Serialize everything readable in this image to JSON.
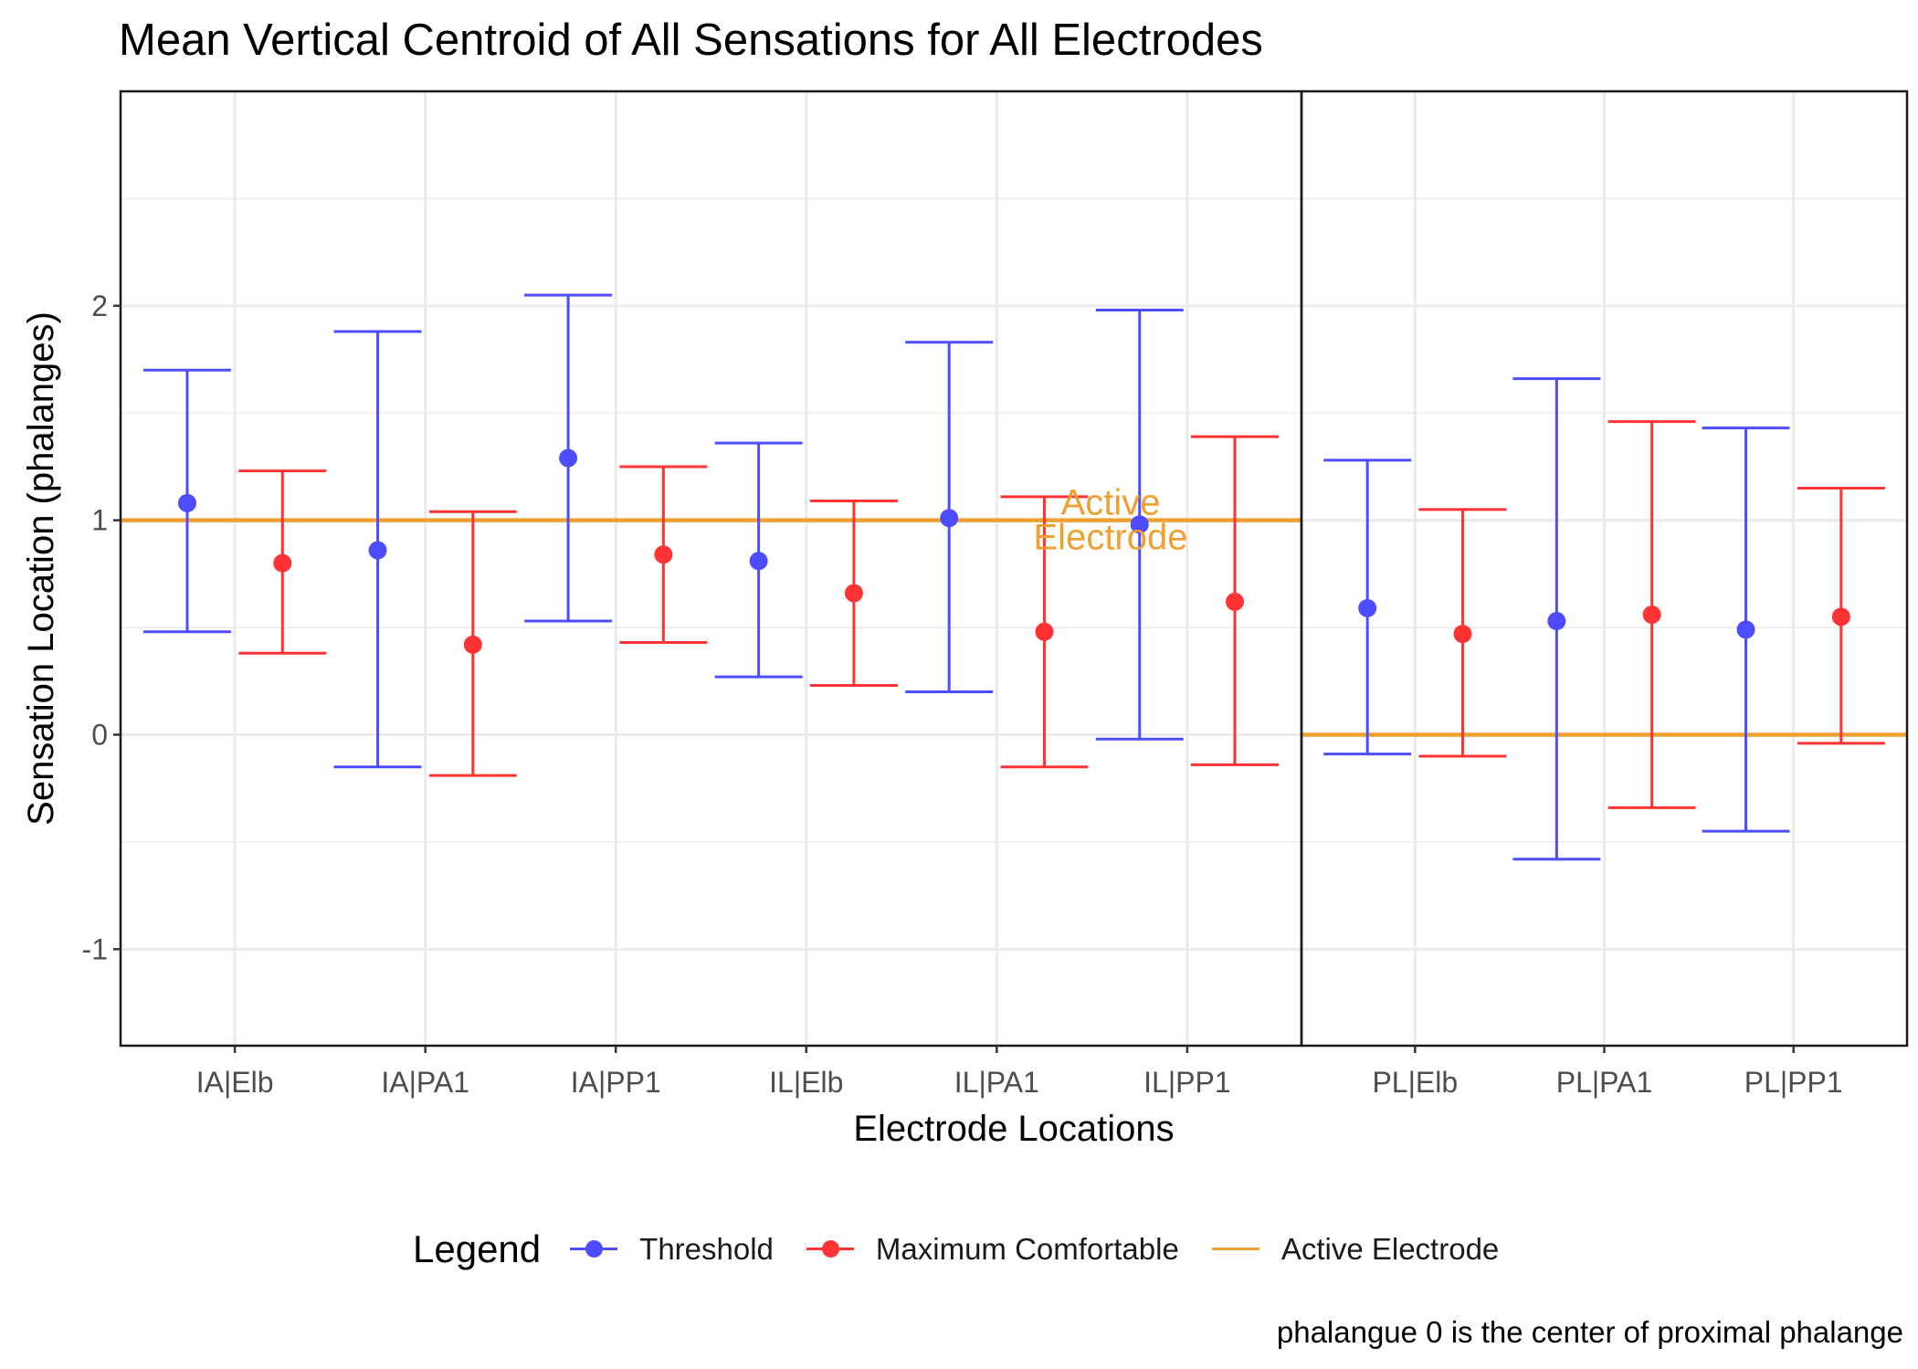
{
  "title": "Mean Vertical Centroid of All Sensations for All Electrodes",
  "caption": "phalangue 0 is the center of proximal phalange",
  "legend": {
    "title": "Legend",
    "items": [
      {
        "label": "Threshold",
        "color": "#4d4dff"
      },
      {
        "label": "Maximum Comfortable",
        "color": "#ff3333"
      },
      {
        "label": "Active Electrode",
        "color": "#f0a030"
      }
    ]
  },
  "chart_data": {
    "type": "scatter",
    "title": "Mean Vertical Centroid of All Sensations for All Electrodes",
    "xlabel": "Electrode Locations",
    "ylabel": "Sensation Location (phalanges)",
    "ylim": [
      -1.45,
      3.0
    ],
    "yticks": [
      -1,
      0,
      1,
      2
    ],
    "grid": true,
    "legend_position": "bottom",
    "panels": [
      {
        "categories": [
          "IA|Elb",
          "IA|PA1",
          "IA|PP1",
          "IL|Elb",
          "IL|PA1",
          "IL|PP1"
        ],
        "active_electrode": 1
      },
      {
        "categories": [
          "PL|Elb",
          "PL|PA1",
          "PL|PP1"
        ],
        "active_electrode": 0
      }
    ],
    "active_label": "Active\nElectrode",
    "series": [
      {
        "name": "Threshold",
        "color": "#4d4dff",
        "points": [
          {
            "category": "IA|Elb",
            "mean": 1.08,
            "low": 0.48,
            "high": 1.7
          },
          {
            "category": "IA|PA1",
            "mean": 0.86,
            "low": -0.15,
            "high": 1.88
          },
          {
            "category": "IA|PP1",
            "mean": 1.29,
            "low": 0.53,
            "high": 2.05
          },
          {
            "category": "IL|Elb",
            "mean": 0.81,
            "low": 0.27,
            "high": 1.36
          },
          {
            "category": "IL|PA1",
            "mean": 1.01,
            "low": 0.2,
            "high": 1.83
          },
          {
            "category": "IL|PP1",
            "mean": 0.98,
            "low": -0.02,
            "high": 1.98
          },
          {
            "category": "PL|Elb",
            "mean": 0.59,
            "low": -0.09,
            "high": 1.28
          },
          {
            "category": "PL|PA1",
            "mean": 0.53,
            "low": -0.58,
            "high": 1.66
          },
          {
            "category": "PL|PP1",
            "mean": 0.49,
            "low": -0.45,
            "high": 1.43
          }
        ]
      },
      {
        "name": "Maximum Comfortable",
        "color": "#ff3333",
        "points": [
          {
            "category": "IA|Elb",
            "mean": 0.8,
            "low": 0.38,
            "high": 1.23
          },
          {
            "category": "IA|PA1",
            "mean": 0.42,
            "low": -0.19,
            "high": 1.04
          },
          {
            "category": "IA|PP1",
            "mean": 0.84,
            "low": 0.43,
            "high": 1.25
          },
          {
            "category": "IL|Elb",
            "mean": 0.66,
            "low": 0.23,
            "high": 1.09
          },
          {
            "category": "IL|PA1",
            "mean": 0.48,
            "low": -0.15,
            "high": 1.11
          },
          {
            "category": "IL|PP1",
            "mean": 0.62,
            "low": -0.14,
            "high": 1.39
          },
          {
            "category": "PL|Elb",
            "mean": 0.47,
            "low": -0.1,
            "high": 1.05
          },
          {
            "category": "PL|PA1",
            "mean": 0.56,
            "low": -0.34,
            "high": 1.46
          },
          {
            "category": "PL|PP1",
            "mean": 0.55,
            "low": -0.04,
            "high": 1.15
          }
        ]
      }
    ]
  }
}
